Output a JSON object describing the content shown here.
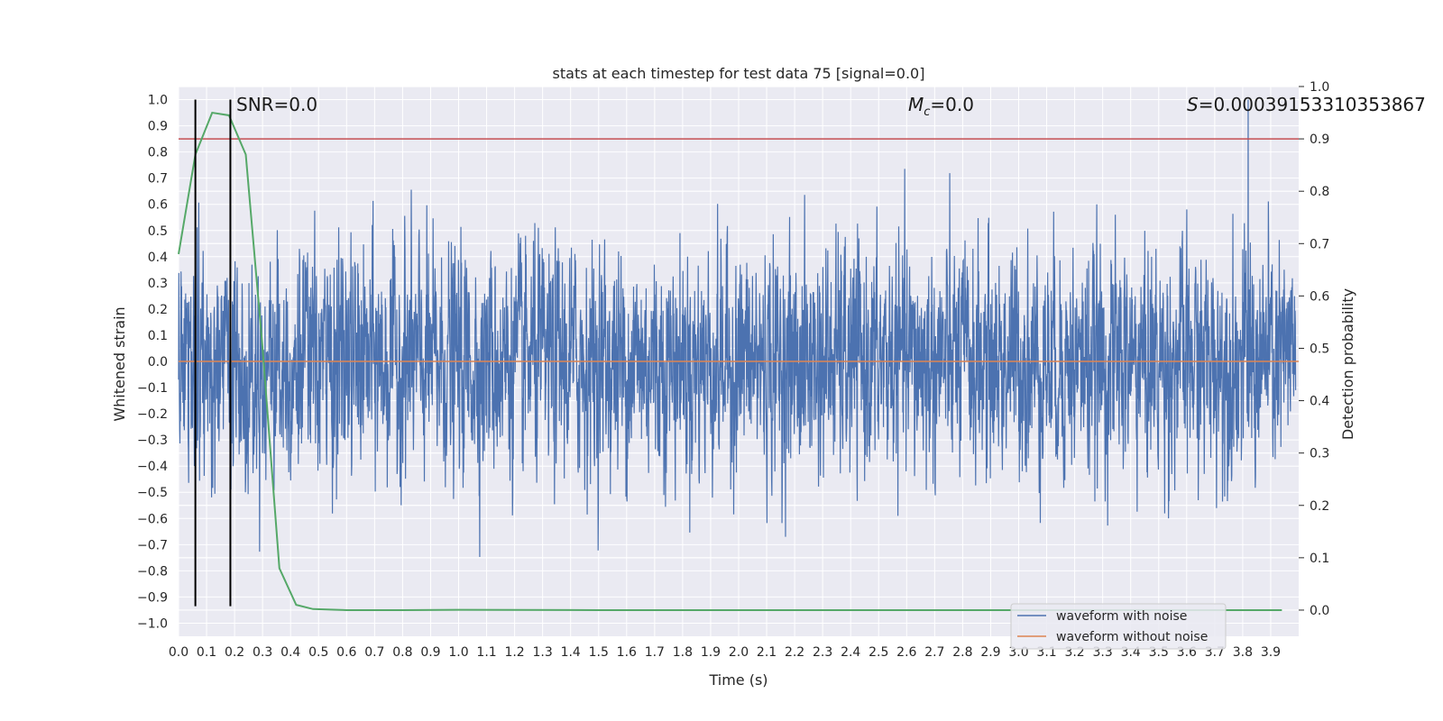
{
  "chart_data": {
    "type": "line",
    "title": "stats at each timestep for test data 75 [signal=0.0]",
    "xlabel": "Time (s)",
    "ylabel": "Whitened strain",
    "y2label": "Detection probability",
    "xlim": [
      0.0,
      4.0
    ],
    "ylim": [
      -1.05,
      1.05
    ],
    "y2lim": [
      -0.05,
      1.0
    ],
    "x_ticks": [
      "0.0",
      "0.1",
      "0.2",
      "0.3",
      "0.4",
      "0.5",
      "0.6",
      "0.7",
      "0.8",
      "0.9",
      "1.0",
      "1.1",
      "1.2",
      "1.3",
      "1.4",
      "1.5",
      "1.6",
      "1.7",
      "1.8",
      "1.9",
      "2.0",
      "2.1",
      "2.2",
      "2.3",
      "2.4",
      "2.5",
      "2.6",
      "2.7",
      "2.8",
      "2.9",
      "3.0",
      "3.1",
      "3.2",
      "3.3",
      "3.4",
      "3.5",
      "3.6",
      "3.7",
      "3.8",
      "3.9"
    ],
    "y_ticks": [
      "1.0",
      "0.9",
      "0.8",
      "0.7",
      "0.6",
      "0.5",
      "0.4",
      "0.3",
      "0.2",
      "0.1",
      "0.0",
      "−0.1",
      "−0.2",
      "−0.3",
      "−0.4",
      "−0.5",
      "−0.6",
      "−0.7",
      "−0.8",
      "−0.9",
      "−1.0"
    ],
    "y2_ticks": [
      "1.0",
      "0.9",
      "0.8",
      "0.7",
      "0.6",
      "0.5",
      "0.4",
      "0.3",
      "0.2",
      "0.1",
      "0.0"
    ],
    "series": [
      {
        "name": "waveform with noise",
        "color": "#4c72b0",
        "description": "dense whitened noise trace, peak ~1.0 at t≈3.82"
      },
      {
        "name": "waveform without noise",
        "color": "#dd8452",
        "y_constant": 0.0
      },
      {
        "name": "detection probability",
        "color": "#55a868",
        "axis": "right",
        "x": [
          0.0,
          0.06,
          0.12,
          0.18,
          0.24,
          0.3,
          0.36,
          0.42,
          0.48,
          0.6,
          0.8,
          1.0,
          1.5,
          2.0,
          2.5,
          3.0,
          3.5,
          3.94
        ],
        "y": [
          0.68,
          0.87,
          0.95,
          0.945,
          0.87,
          0.5,
          0.08,
          0.01,
          0.002,
          0.0,
          0.0,
          0.0005,
          0.0,
          0.0,
          0.0,
          0.0,
          0.0,
          0.0
        ]
      }
    ],
    "threshold": {
      "axis": "right",
      "value": 0.9,
      "color": "#c44e52"
    },
    "vlines": [
      0.06,
      0.185
    ],
    "vline_range": [
      -0.935,
      1.0
    ],
    "annotations": {
      "snr": "SNR=0.0",
      "mc_symbol": "M",
      "mc_sub": "c",
      "mc_value": "=0.0",
      "s_symbol": "S",
      "s_value": "=0.00039153310353867"
    },
    "legend": {
      "position": "lower-right",
      "entries": [
        "waveform with noise",
        "waveform without noise"
      ]
    }
  }
}
